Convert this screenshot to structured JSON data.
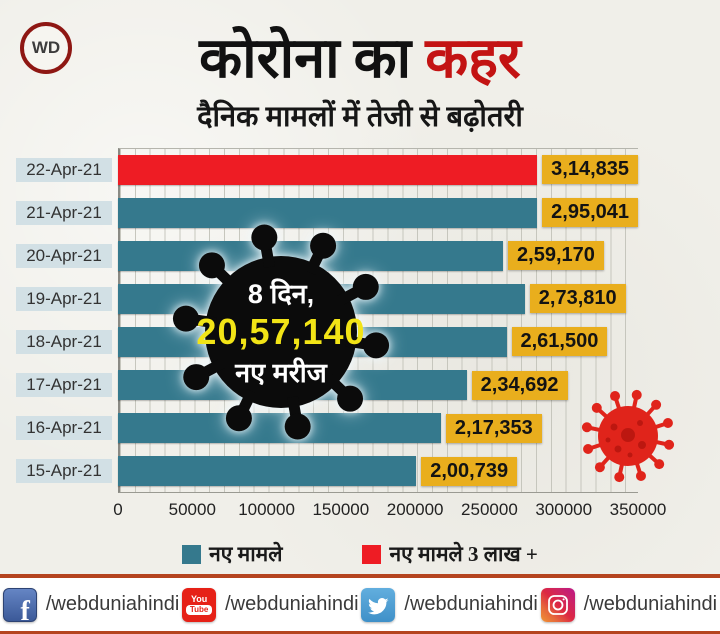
{
  "header": {
    "logo_text": "WD",
    "title_black": "कोरोना का",
    "title_red": "कहर",
    "subtitle": "दैनिक मामलों में तेजी से बढ़ोतरी"
  },
  "chart_data": {
    "type": "bar",
    "orientation": "horizontal",
    "categories": [
      "22-Apr-21",
      "21-Apr-21",
      "20-Apr-21",
      "19-Apr-21",
      "18-Apr-21",
      "17-Apr-21",
      "16-Apr-21",
      "15-Apr-21"
    ],
    "values": [
      314835,
      295041,
      259170,
      273810,
      261500,
      234692,
      217353,
      200739
    ],
    "value_labels": [
      "3,14,835",
      "2,95,041",
      "2,59,170",
      "2,73,810",
      "2,61,500",
      "2,34,692",
      "2,17,353",
      "2,00,739"
    ],
    "bar_colors": [
      "#ee1c24",
      "#35798d",
      "#35798d",
      "#35798d",
      "#35798d",
      "#35798d",
      "#35798d",
      "#35798d"
    ],
    "xlim": [
      0,
      350000
    ],
    "x_ticks": [
      "0",
      "50000",
      "100000",
      "150000",
      "200000",
      "250000",
      "300000",
      "350000"
    ],
    "grid": "minor vertical every 10000",
    "legend_position": "bottom",
    "legend": [
      {
        "label": "नए मामले",
        "color": "#35798d"
      },
      {
        "label": "नए मामले 3 लाख +",
        "color": "#ee1c24"
      }
    ],
    "annotation": {
      "line1": "8 दिन,",
      "line2": "20,57,140",
      "line3": "नए मरीज"
    }
  },
  "footer": {
    "items": [
      {
        "network": "facebook",
        "handle": "/webduniahindi"
      },
      {
        "network": "youtube",
        "handle": "/webduniahindi"
      },
      {
        "network": "twitter",
        "handle": "/webduniahindi"
      },
      {
        "network": "instagram",
        "handle": "/webduniahindi"
      }
    ]
  },
  "colors": {
    "background": "#f0efe9",
    "title_red": "#c31313",
    "bar_teal": "#35798d",
    "bar_red": "#ee1c24",
    "value_badge_bg": "#e9ae1d",
    "date_label_bg": "#d2e0e5",
    "annotation_yellow": "#f2e416",
    "divider": "#b5441f",
    "footer_bg": "#ffffff"
  }
}
